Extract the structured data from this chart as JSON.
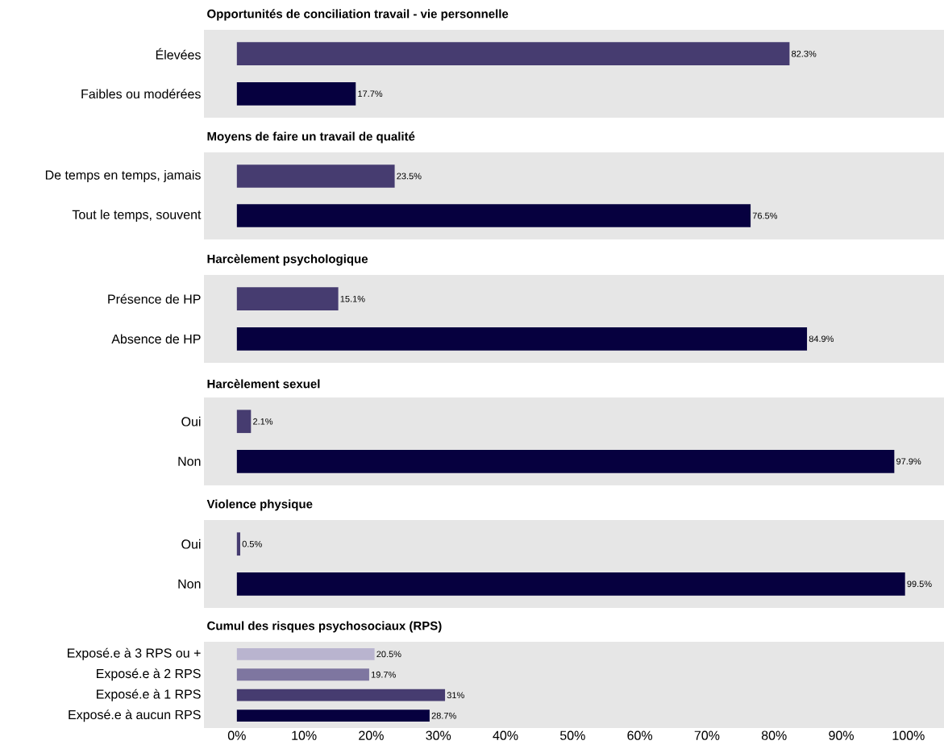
{
  "chart_data": [
    {
      "type": "bar",
      "orientation": "horizontal",
      "title": "Opportunités de conciliation travail - vie personnelle",
      "categories": [
        "Élevées",
        "Faibles ou modérées"
      ],
      "values": [
        82.3,
        17.7
      ],
      "colors": [
        "#463c70",
        "#06003f"
      ],
      "value_labels": [
        "82.3%",
        "17.7%"
      ],
      "xlim": [
        -4.9,
        105.3
      ],
      "tick_labels": "y"
    },
    {
      "type": "bar",
      "orientation": "horizontal",
      "title": "Moyens de faire un travail de qualité",
      "categories": [
        "De temps en temps, jamais",
        "Tout le temps, souvent"
      ],
      "values": [
        23.5,
        76.5
      ],
      "colors": [
        "#463c70",
        "#06003f"
      ],
      "value_labels": [
        "23.5%",
        "76.5%"
      ],
      "xlim": [
        -4.9,
        105.3
      ],
      "tick_labels": "y"
    },
    {
      "type": "bar",
      "orientation": "horizontal",
      "title": "Harcèlement psychologique",
      "categories": [
        "Présence de HP",
        "Absence de HP"
      ],
      "values": [
        15.1,
        84.9
      ],
      "colors": [
        "#463c70",
        "#06003f"
      ],
      "value_labels": [
        "15.1%",
        "84.9%"
      ],
      "xlim": [
        -4.9,
        105.3
      ],
      "tick_labels": "y"
    },
    {
      "type": "bar",
      "orientation": "horizontal",
      "title": "Harcèlement sexuel",
      "categories": [
        "Oui",
        "Non"
      ],
      "values": [
        2.1,
        97.9
      ],
      "colors": [
        "#463c70",
        "#06003f"
      ],
      "value_labels": [
        "2.1%",
        "97.9%"
      ],
      "xlim": [
        -4.9,
        105.3
      ],
      "tick_labels": "y"
    },
    {
      "type": "bar",
      "orientation": "horizontal",
      "title": "Violence physique",
      "categories": [
        "Oui",
        "Non"
      ],
      "values": [
        0.5,
        99.5
      ],
      "colors": [
        "#463c70",
        "#06003f"
      ],
      "value_labels": [
        "0.5%",
        "99.5%"
      ],
      "xlim": [
        -4.9,
        105.3
      ],
      "tick_labels": "y"
    },
    {
      "type": "bar",
      "orientation": "horizontal",
      "title": "Cumul des risques psychosociaux (RPS)",
      "categories": [
        "Exposé.e à 3 RPS ou +",
        "Exposé.e à 2 RPS",
        "Exposé.e à 1 RPS",
        "Exposé.e à aucun RPS"
      ],
      "values": [
        20.5,
        19.7,
        31,
        28.7
      ],
      "colors": [
        "#b9b4cf",
        "#7e76a0",
        "#463c70",
        "#06003f"
      ],
      "value_labels": [
        "20.5%",
        "19.7%",
        "31%",
        "28.7%"
      ],
      "xlim": [
        -4.9,
        105.3
      ],
      "xticks": [
        {
          "value": 0,
          "label": "0%"
        },
        {
          "value": 10,
          "label": "10%"
        },
        {
          "value": 20,
          "label": "20%"
        },
        {
          "value": 30,
          "label": "30%"
        },
        {
          "value": 40,
          "label": "40%"
        },
        {
          "value": 50,
          "label": "50%"
        },
        {
          "value": 60,
          "label": "60%"
        },
        {
          "value": 70,
          "label": "70%"
        },
        {
          "value": 80,
          "label": "80%"
        },
        {
          "value": 90,
          "label": "90%"
        },
        {
          "value": 100,
          "label": "100%"
        }
      ]
    }
  ]
}
